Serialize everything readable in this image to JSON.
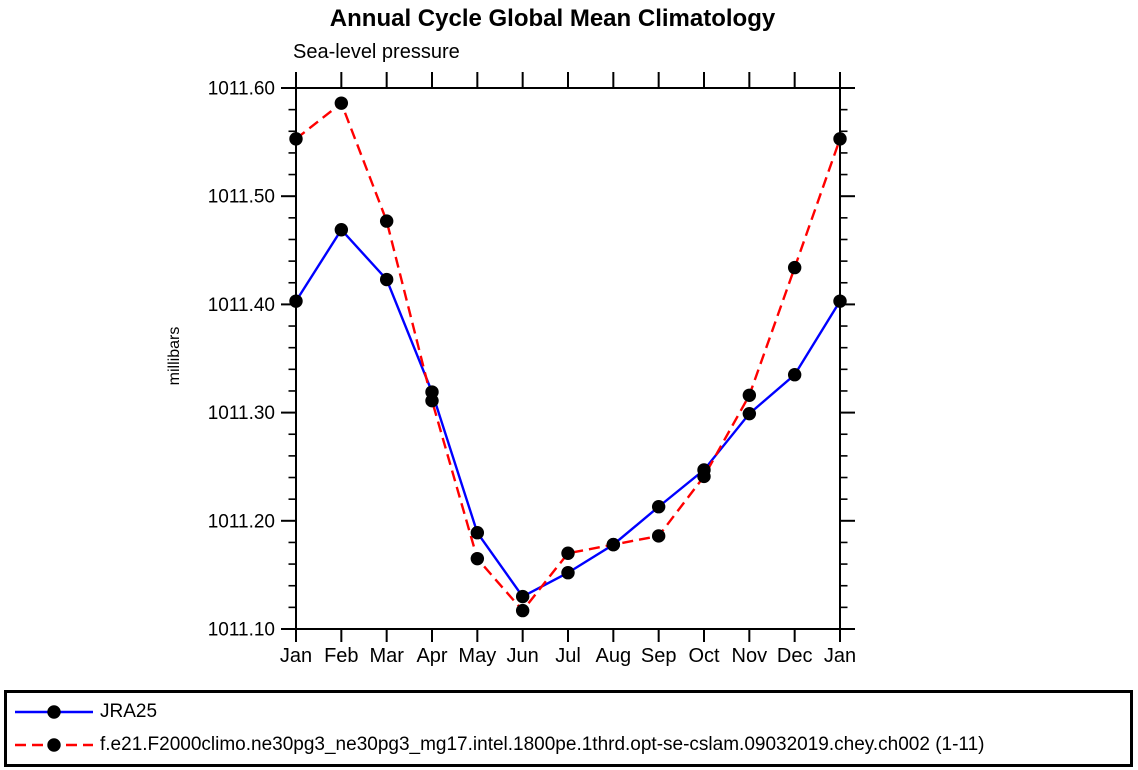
{
  "chart_data": {
    "type": "line",
    "title": "Annual Cycle Global Mean Climatology",
    "subtitle": "Sea-level pressure",
    "ylabel": "millibars",
    "xlabel": "",
    "categories": [
      "Jan",
      "Feb",
      "Mar",
      "Apr",
      "May",
      "Jun",
      "Jul",
      "Aug",
      "Sep",
      "Oct",
      "Nov",
      "Dec",
      "Jan"
    ],
    "series": [
      {
        "name": "JRA25",
        "color": "#0000ff",
        "line_style": "solid",
        "marker": "filled-circle",
        "marker_color": "#000000",
        "values": [
          1011.403,
          1011.469,
          1011.423,
          1011.319,
          1011.189,
          1011.13,
          1011.152,
          1011.178,
          1011.213,
          1011.247,
          1011.299,
          1011.335,
          1011.403
        ]
      },
      {
        "name": "f.e21.F2000climo.ne30pg3_ne30pg3_mg17.intel.1800pe.1thrd.opt-se-cslam.09032019.chey.ch002 (1-11)",
        "color": "#ff0000",
        "line_style": "dashed",
        "marker": "filled-circle",
        "marker_color": "#000000",
        "values": [
          1011.553,
          1011.586,
          1011.477,
          1011.311,
          1011.165,
          1011.117,
          1011.17,
          1011.178,
          1011.186,
          1011.241,
          1011.316,
          1011.434,
          1011.553
        ]
      }
    ],
    "ylim": [
      1011.1,
      1011.6
    ],
    "y_major_step": 0.1,
    "y_minor_step": 0.02,
    "y_tick_labels": [
      "1011.10",
      "1011.20",
      "1011.30",
      "1011.40",
      "1011.50",
      "1011.60"
    ],
    "grid": false,
    "legend_position": "bottom-box",
    "axis_color": "#000000",
    "background_color": "#ffffff"
  }
}
